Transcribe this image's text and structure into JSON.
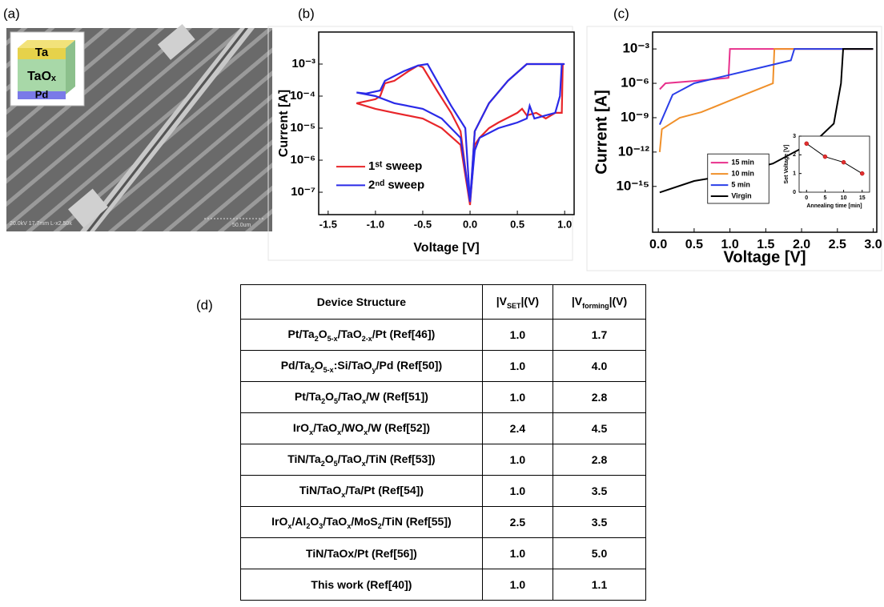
{
  "panel_labels": [
    "(a)",
    "(b)",
    "(c)",
    "(d)"
  ],
  "sem_image": {
    "layers": [
      "Ta",
      "TaOₓ",
      "Pd"
    ],
    "caption": "20.0kV 17.7mm L-x2.50k",
    "scale_bar": "50.0um"
  },
  "chart_data": [
    {
      "type": "line",
      "x_label": "Voltage [V]",
      "y_label": "Current [A]",
      "yscale": "log",
      "xlim": [
        -1.6,
        1.1
      ],
      "ylim": [
        2e-08,
        0.01
      ],
      "xticks": [
        -1.5,
        {
          "value": -1,
          "label": "-1.0"
        },
        -0.5,
        {
          "value": 0,
          "label": "0.0"
        },
        0.5,
        {
          "value": 1,
          "label": "1.0"
        }
      ],
      "yticks": [
        {
          "value": 1e-07,
          "label": "10⁻⁷"
        },
        {
          "value": 1e-06,
          "label": "10⁻⁶"
        },
        {
          "value": 1e-05,
          "label": "10⁻⁵"
        },
        {
          "value": 0.0001,
          "label": "10⁻⁴"
        },
        {
          "value": 0.001,
          "label": "10⁻³"
        }
      ],
      "legend_position": "lower left",
      "series": [
        {
          "name": "1ˢᵗ sweep",
          "color": "#e8262a",
          "x": [
            0,
            0.05,
            0.1,
            0.2,
            0.3,
            0.5,
            0.55,
            0.6,
            0.7,
            0.8,
            0.9,
            0.97,
            0.98,
            0.6,
            0.4,
            0.2,
            0.05,
            0,
            -0.1,
            -0.2,
            -0.35,
            -0.5,
            -0.55,
            -0.65,
            -0.8,
            -0.9,
            -0.95,
            -1.0,
            -1.2,
            -1.0,
            -0.8,
            -0.5,
            -0.3,
            -0.1,
            0
          ],
          "values": [
            4e-08,
            3e-06,
            5e-06,
            1e-05,
            1.5e-05,
            3e-05,
            4e-05,
            2.5e-05,
            3e-05,
            2e-05,
            3e-05,
            3e-05,
            0.001,
            0.001,
            0.0003,
            6e-05,
            8e-06,
            4e-08,
            8e-06,
            3e-05,
            0.00015,
            0.0008,
            0.0009,
            0.0006,
            0.0003,
            0.00025,
            0.0001,
            8e-05,
            6e-05,
            4e-05,
            3e-05,
            2e-05,
            1e-05,
            3e-06,
            4e-08
          ]
        },
        {
          "name": "2ⁿᵈ sweep",
          "color": "#2a2ae8",
          "x": [
            0,
            0.05,
            0.1,
            0.3,
            0.5,
            0.6,
            0.63,
            0.68,
            0.8,
            0.9,
            0.95,
            0.97,
            1.0,
            0.6,
            0.4,
            0.2,
            0.05,
            0,
            -0.05,
            -0.2,
            -0.35,
            -0.45,
            -0.55,
            -0.7,
            -0.9,
            -0.95,
            -1.1,
            -1.2,
            -1.0,
            -0.8,
            -0.5,
            -0.3,
            -0.1,
            0
          ],
          "values": [
            5e-08,
            2e-06,
            5e-06,
            1e-05,
            1.5e-05,
            2e-05,
            5e-05,
            2e-05,
            2.5e-05,
            3e-05,
            0.0001,
            0.001,
            0.001,
            0.001,
            0.0003,
            6e-05,
            8e-06,
            5e-08,
            1e-05,
            5e-05,
            0.0003,
            0.001,
            0.0009,
            0.0006,
            0.0003,
            0.00015,
            0.00012,
            0.00013,
            0.0001,
            6e-05,
            4e-05,
            2e-05,
            5e-06,
            5e-08
          ]
        }
      ]
    },
    {
      "type": "line",
      "x_label": "Voltage [V]",
      "y_label": "Current [A]",
      "yscale": "log",
      "xlim": [
        -0.08,
        3.05
      ],
      "ylim": [
        1e-19,
        0.03
      ],
      "xticks": [
        {
          "value": 0,
          "label": "0.0"
        },
        0.5,
        {
          "value": 1,
          "label": "1.0"
        },
        1.5,
        {
          "value": 2,
          "label": "2.0"
        },
        2.5,
        {
          "value": 3,
          "label": "3.0"
        }
      ],
      "yticks": [
        {
          "value": 1e-15,
          "label": "10⁻¹⁵"
        },
        {
          "value": 1e-12,
          "label": "10⁻¹²"
        },
        {
          "value": 1e-09,
          "label": "10⁻⁹"
        },
        {
          "value": 1e-06,
          "label": "10⁻⁶"
        },
        {
          "value": 0.001,
          "label": "10⁻³"
        }
      ],
      "legend_position": "lower center",
      "legend_frame": true,
      "series": [
        {
          "name": "15 min",
          "color": "#e8308c",
          "x": [
            0.02,
            0.1,
            0.5,
            0.98,
            1.0,
            3.0
          ],
          "values": [
            3e-07,
            1e-06,
            1.6e-06,
            3e-06,
            0.001,
            0.001
          ]
        },
        {
          "name": "10 min",
          "color": "#f0902a",
          "x": [
            0.02,
            0.05,
            0.3,
            0.6,
            1.2,
            1.6,
            1.62,
            3.0
          ],
          "values": [
            1e-12,
            1e-10,
            1e-09,
            3e-09,
            1e-07,
            1e-06,
            0.001,
            0.001
          ]
        },
        {
          "name": "5 min",
          "color": "#2a3ee8",
          "x": [
            0.02,
            0.2,
            0.5,
            1.5,
            1.85,
            1.9,
            3.0
          ],
          "values": [
            2.5e-10,
            1e-07,
            1e-06,
            3e-05,
            0.0001,
            0.001,
            0.001
          ]
        },
        {
          "name": "Virgin",
          "color": "#000000",
          "x": [
            0.02,
            0.5,
            1.0,
            1.6,
            2.2,
            2.45,
            2.55,
            2.58,
            3.0
          ],
          "values": [
            3e-16,
            3e-15,
            1e-14,
            1e-13,
            1e-11,
            3e-10,
            1e-06,
            0.001,
            0.001
          ]
        }
      ]
    },
    {
      "type": "line",
      "x_label": "Annealing time [min]",
      "y_label": "Set Voltage [V]",
      "x": [
        0,
        5,
        10,
        15
      ],
      "values": [
        2.6,
        1.9,
        1.6,
        1.0
      ],
      "color": "#000000",
      "marker_color": "#e03030",
      "xlim": [
        -2,
        17
      ],
      "ylim": [
        0,
        3
      ],
      "xticks": [
        0,
        5,
        10,
        15
      ],
      "yticks": [
        0,
        1,
        2,
        3
      ]
    }
  ],
  "table": {
    "header": [
      [
        "Device Structure"
      ],
      [
        "|V",
        "SET",
        "|(V)"
      ],
      [
        "|V",
        "forming",
        "|(V)"
      ]
    ],
    "rows": [
      [
        [
          "Pt/Ta",
          "2",
          "O",
          "5-x",
          "/TaO",
          "2-x",
          "/Pt (Ref[46])"
        ],
        "1.0",
        "1.7"
      ],
      [
        [
          "Pd/Ta",
          "2",
          "O",
          "5-x",
          ":Si/TaO",
          "y",
          "/Pd (Ref[50])"
        ],
        "1.0",
        "4.0"
      ],
      [
        [
          "Pt/Ta",
          "2",
          "O",
          "5",
          "/TaO",
          "x",
          "/W (Ref[51])"
        ],
        "1.0",
        "2.8"
      ],
      [
        [
          "IrO",
          "x",
          "/TaO",
          "x",
          "/WO",
          "x",
          "/W (Ref[52])"
        ],
        "2.4",
        "4.5"
      ],
      [
        [
          "TiN/Ta",
          "2",
          "O",
          "5",
          "/TaO",
          "x",
          "/TiN (Ref[53])"
        ],
        "1.0",
        "2.8"
      ],
      [
        [
          "TiN/TaO",
          "x",
          "/Ta/Pt (Ref[54])"
        ],
        "1.0",
        "3.5"
      ],
      [
        [
          "IrO",
          "x",
          "/Al",
          "2",
          "O",
          "3",
          "/TaO",
          "x",
          "/MoS",
          "2",
          "/TiN (Ref[55])"
        ],
        "2.5",
        "3.5"
      ],
      [
        [
          "TiN/TaOx/Pt (Ref[56])"
        ],
        "1.0",
        "5.0"
      ],
      [
        [
          "This work (Ref[40])"
        ],
        "1.0",
        "1.1"
      ]
    ]
  }
}
